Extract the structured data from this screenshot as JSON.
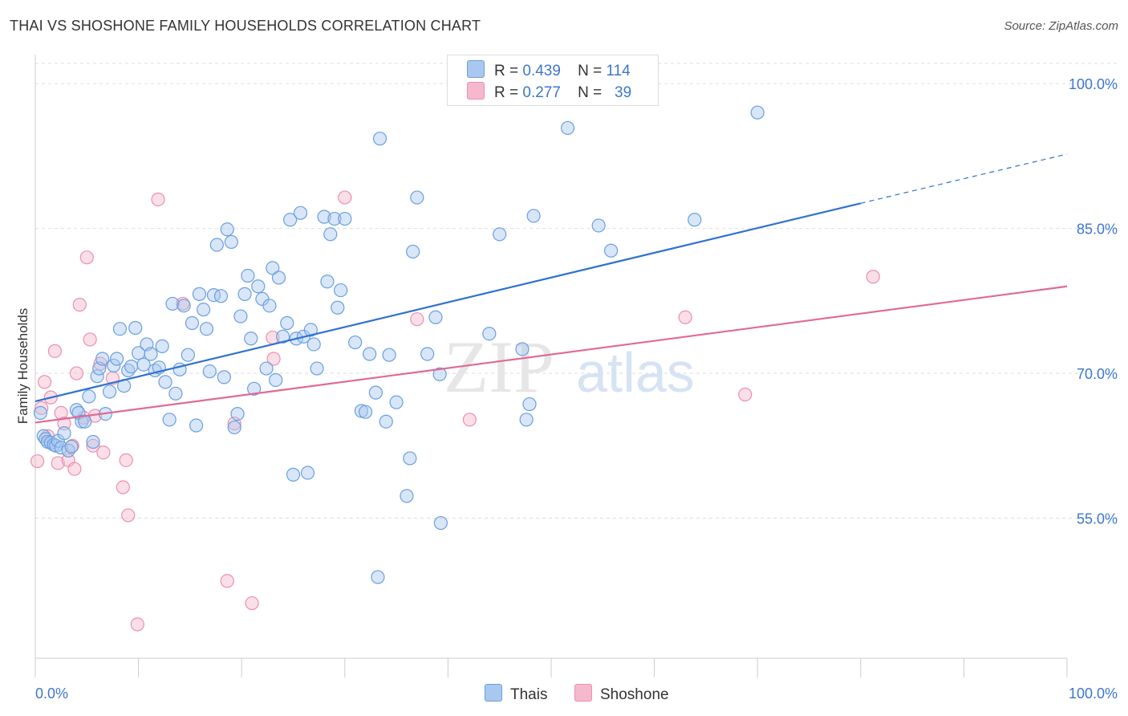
{
  "header": {
    "title": "THAI VS SHOSHONE FAMILY HOUSEHOLDS CORRELATION CHART",
    "source": "Source: ZipAtlas.com"
  },
  "legend": {
    "thai": {
      "r_label": "R =",
      "r_value": "0.439",
      "n_label": "N =",
      "n_value": "114"
    },
    "shoshone": {
      "r_label": "R =",
      "r_value": "0.277",
      "n_label": "N =",
      "n_value": "39"
    }
  },
  "bottom_legend": {
    "thai": "Thais",
    "shoshone": "Shoshone"
  },
  "watermark": {
    "zip": "ZIP",
    "atlas": "atlas"
  },
  "colors": {
    "thai_fill": "#a9c8ef",
    "thai_stroke": "#6a9fe0",
    "thai_line": "#2f72d0",
    "shoshone_fill": "#f6b8cc",
    "shoshone_stroke": "#ec8fae",
    "shoshone_line": "#e06a92",
    "tick_label": "#3d76cc",
    "grid": "#dddddd"
  },
  "chart_data": {
    "type": "scatter",
    "title": "THAI VS SHOSHONE FAMILY HOUSEHOLDS CORRELATION CHART",
    "ylabel": "Family Households",
    "xlabel": "",
    "xlim": [
      0,
      100
    ],
    "ylim": [
      40.5,
      103
    ],
    "x_tick_labels": [
      "0.0%",
      "100.0%"
    ],
    "y_ticks": [
      55,
      70,
      85,
      100
    ],
    "y_tick_labels": [
      "55.0%",
      "70.0%",
      "85.0%",
      "100.0%"
    ],
    "grid": true,
    "series": [
      {
        "name": "Thais",
        "r": 0.439,
        "n": 114,
        "trend": {
          "x0": 0,
          "y0": 67.1,
          "x1": 80,
          "y1": 87.6,
          "dashed_to_x": 100,
          "dashed_to_y": 92.7
        },
        "points": [
          [
            0.5,
            65.9
          ],
          [
            0.8,
            63.5
          ],
          [
            1.0,
            63.2
          ],
          [
            1.2,
            62.9
          ],
          [
            1.5,
            62.8
          ],
          [
            1.8,
            62.6
          ],
          [
            2.0,
            62.5
          ],
          [
            2.2,
            63.0
          ],
          [
            2.5,
            62.3
          ],
          [
            2.8,
            63.8
          ],
          [
            3.2,
            62.0
          ],
          [
            3.5,
            62.4
          ],
          [
            4.0,
            66.2
          ],
          [
            4.2,
            65.9
          ],
          [
            4.5,
            65.0
          ],
          [
            4.8,
            65.0
          ],
          [
            5.2,
            67.6
          ],
          [
            5.6,
            62.9
          ],
          [
            6.0,
            69.7
          ],
          [
            6.2,
            70.5
          ],
          [
            6.5,
            71.5
          ],
          [
            6.8,
            65.8
          ],
          [
            7.2,
            68.1
          ],
          [
            7.6,
            70.8
          ],
          [
            7.9,
            71.5
          ],
          [
            8.2,
            74.6
          ],
          [
            8.6,
            68.7
          ],
          [
            9.0,
            70.3
          ],
          [
            9.3,
            70.7
          ],
          [
            9.7,
            74.7
          ],
          [
            10.0,
            72.1
          ],
          [
            10.5,
            70.9
          ],
          [
            10.8,
            73.0
          ],
          [
            11.2,
            72.0
          ],
          [
            11.6,
            70.3
          ],
          [
            12.0,
            70.6
          ],
          [
            12.3,
            72.8
          ],
          [
            12.6,
            69.1
          ],
          [
            13.0,
            65.2
          ],
          [
            13.3,
            77.2
          ],
          [
            13.6,
            67.9
          ],
          [
            14.0,
            70.4
          ],
          [
            14.4,
            77.0
          ],
          [
            14.8,
            71.9
          ],
          [
            15.2,
            75.2
          ],
          [
            15.6,
            64.6
          ],
          [
            15.9,
            78.2
          ],
          [
            16.3,
            76.6
          ],
          [
            16.6,
            74.6
          ],
          [
            16.9,
            70.2
          ],
          [
            17.3,
            78.1
          ],
          [
            17.6,
            83.3
          ],
          [
            18.0,
            78.0
          ],
          [
            18.3,
            69.6
          ],
          [
            18.6,
            84.9
          ],
          [
            19.0,
            83.6
          ],
          [
            19.3,
            64.4
          ],
          [
            19.6,
            65.8
          ],
          [
            19.9,
            75.9
          ],
          [
            20.3,
            78.2
          ],
          [
            20.6,
            80.1
          ],
          [
            20.9,
            73.6
          ],
          [
            21.2,
            68.4
          ],
          [
            21.6,
            79.0
          ],
          [
            22.0,
            77.7
          ],
          [
            22.4,
            70.5
          ],
          [
            22.7,
            77.0
          ],
          [
            23.0,
            80.9
          ],
          [
            23.3,
            69.3
          ],
          [
            23.6,
            79.9
          ],
          [
            24.0,
            73.8
          ],
          [
            24.4,
            75.2
          ],
          [
            24.7,
            85.9
          ],
          [
            25.0,
            59.5
          ],
          [
            25.3,
            73.6
          ],
          [
            25.7,
            86.6
          ],
          [
            26.0,
            73.8
          ],
          [
            26.4,
            59.7
          ],
          [
            26.7,
            74.5
          ],
          [
            27.0,
            73.0
          ],
          [
            27.3,
            70.5
          ],
          [
            28.0,
            86.2
          ],
          [
            28.3,
            79.5
          ],
          [
            28.6,
            84.4
          ],
          [
            29.0,
            86.0
          ],
          [
            29.3,
            76.8
          ],
          [
            29.6,
            78.6
          ],
          [
            30.0,
            86.0
          ],
          [
            31.0,
            73.2
          ],
          [
            31.6,
            66.1
          ],
          [
            32.0,
            66.0
          ],
          [
            32.4,
            72.0
          ],
          [
            33.0,
            68.0
          ],
          [
            33.4,
            94.3
          ],
          [
            34.0,
            65.0
          ],
          [
            34.3,
            71.9
          ],
          [
            35.0,
            67.0
          ],
          [
            36.0,
            57.3
          ],
          [
            36.3,
            61.2
          ],
          [
            36.6,
            82.6
          ],
          [
            37.0,
            88.2
          ],
          [
            38.0,
            72.0
          ],
          [
            38.8,
            75.8
          ],
          [
            39.2,
            69.9
          ],
          [
            39.3,
            54.5
          ],
          [
            44.0,
            74.1
          ],
          [
            45.0,
            84.4
          ],
          [
            47.2,
            72.5
          ],
          [
            47.6,
            65.2
          ],
          [
            47.9,
            66.8
          ],
          [
            48.3,
            86.3
          ],
          [
            51.6,
            95.4
          ],
          [
            54.6,
            85.3
          ],
          [
            55.8,
            82.7
          ],
          [
            63.9,
            85.9
          ],
          [
            70.0,
            97.0
          ],
          [
            33.2,
            48.9
          ]
        ]
      },
      {
        "name": "Shoshone",
        "r": 0.277,
        "n": 39,
        "trend": {
          "x0": 0,
          "y0": 64.9,
          "x1": 100,
          "y1": 79.0
        },
        "points": [
          [
            0.2,
            60.9
          ],
          [
            0.6,
            66.4
          ],
          [
            0.9,
            69.1
          ],
          [
            1.2,
            63.5
          ],
          [
            1.5,
            67.5
          ],
          [
            1.9,
            72.3
          ],
          [
            2.2,
            60.7
          ],
          [
            2.5,
            65.9
          ],
          [
            2.8,
            64.8
          ],
          [
            3.2,
            61.0
          ],
          [
            3.6,
            62.5
          ],
          [
            3.8,
            60.1
          ],
          [
            4.0,
            70.0
          ],
          [
            4.3,
            77.1
          ],
          [
            4.7,
            65.4
          ],
          [
            5.0,
            82.0
          ],
          [
            5.3,
            73.5
          ],
          [
            5.6,
            62.5
          ],
          [
            5.8,
            65.6
          ],
          [
            6.3,
            71.0
          ],
          [
            6.6,
            61.8
          ],
          [
            7.5,
            69.5
          ],
          [
            8.5,
            58.2
          ],
          [
            8.8,
            61.0
          ],
          [
            9.0,
            55.3
          ],
          [
            9.9,
            44.0
          ],
          [
            11.9,
            88.0
          ],
          [
            14.3,
            77.2
          ],
          [
            18.6,
            48.5
          ],
          [
            19.3,
            64.8
          ],
          [
            21.0,
            46.2
          ],
          [
            23.0,
            73.7
          ],
          [
            23.1,
            71.5
          ],
          [
            30.0,
            88.2
          ],
          [
            37.0,
            75.6
          ],
          [
            42.1,
            65.2
          ],
          [
            63.0,
            75.8
          ],
          [
            68.8,
            67.8
          ],
          [
            81.2,
            80.0
          ]
        ]
      }
    ]
  }
}
